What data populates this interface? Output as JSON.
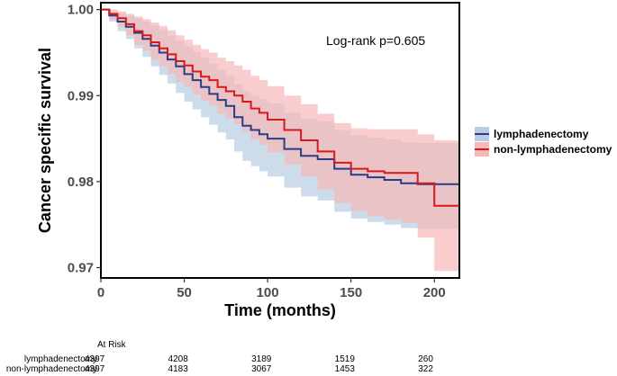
{
  "chart_data": {
    "type": "line",
    "subtype": "kaplan-meier",
    "title": "",
    "xlabel": "Time (months)",
    "ylabel": "Cancer specific survival",
    "xlim": [
      0,
      215
    ],
    "ylim": [
      0.9688,
      1.0008
    ],
    "xticks": [
      0,
      50,
      100,
      150,
      200
    ],
    "xtick_labels": [
      "0",
      "50",
      "100",
      "150",
      "200"
    ],
    "yticks": [
      0.97,
      0.98,
      0.99,
      1.0
    ],
    "ytick_labels": [
      "0.97",
      "0.98",
      "0.99",
      "1.00"
    ],
    "annotation": "Log-rank p=0.605",
    "legend": {
      "placement": "right",
      "entries": [
        {
          "name": "lymphadenectomy",
          "line_color": "#2b3d87",
          "fill_color": "#b8cde3"
        },
        {
          "name": "non-lymphadenectomy",
          "line_color": "#d7191c",
          "fill_color": "#f7b8b8"
        }
      ]
    },
    "series": [
      {
        "name": "lymphadenectomy",
        "color": "#2b3d87",
        "ci_color": "#b8cde3",
        "x": [
          0,
          5,
          10,
          15,
          20,
          25,
          30,
          35,
          40,
          45,
          50,
          55,
          60,
          65,
          70,
          75,
          80,
          85,
          90,
          95,
          100,
          110,
          120,
          130,
          140,
          150,
          160,
          170,
          180,
          190,
          200,
          215
        ],
        "y": [
          1.0,
          0.9993,
          0.9986,
          0.998,
          0.9973,
          0.9966,
          0.9958,
          0.995,
          0.9942,
          0.9934,
          0.9925,
          0.9918,
          0.991,
          0.9902,
          0.9895,
          0.9888,
          0.9875,
          0.9865,
          0.986,
          0.9855,
          0.985,
          0.9838,
          0.983,
          0.9826,
          0.9815,
          0.9808,
          0.9805,
          0.9802,
          0.9798,
          0.9797,
          0.9797,
          0.9797
        ],
        "lower": [
          1.0,
          0.9986,
          0.9975,
          0.9966,
          0.9955,
          0.9945,
          0.9934,
          0.9924,
          0.9914,
          0.9903,
          0.9893,
          0.9884,
          0.9875,
          0.9866,
          0.9857,
          0.9849,
          0.9835,
          0.9824,
          0.9818,
          0.9812,
          0.9806,
          0.9793,
          0.9783,
          0.9778,
          0.9765,
          0.9757,
          0.9753,
          0.975,
          0.9746,
          0.9745,
          0.9745,
          0.9745
        ],
        "upper": [
          1.0,
          0.9999,
          0.9996,
          0.9993,
          0.999,
          0.9986,
          0.9982,
          0.9977,
          0.997,
          0.9964,
          0.9957,
          0.9951,
          0.9944,
          0.9937,
          0.993,
          0.9923,
          0.9913,
          0.9905,
          0.99,
          0.9896,
          0.9891,
          0.988,
          0.9873,
          0.987,
          0.986,
          0.9854,
          0.9851,
          0.9849,
          0.9846,
          0.9845,
          0.9845,
          0.9845
        ]
      },
      {
        "name": "non-lymphadenectomy",
        "color": "#d7191c",
        "ci_color": "#f7b8b8",
        "x": [
          0,
          5,
          10,
          15,
          20,
          25,
          30,
          35,
          40,
          45,
          50,
          55,
          60,
          65,
          70,
          75,
          80,
          85,
          90,
          95,
          100,
          110,
          120,
          130,
          140,
          150,
          160,
          170,
          180,
          190,
          200,
          215
        ],
        "y": [
          1.0,
          0.9995,
          0.999,
          0.9983,
          0.9975,
          0.997,
          0.9962,
          0.9955,
          0.9948,
          0.994,
          0.9935,
          0.9928,
          0.9922,
          0.9918,
          0.991,
          0.9905,
          0.99,
          0.9893,
          0.9885,
          0.988,
          0.9872,
          0.986,
          0.9848,
          0.9835,
          0.9822,
          0.9815,
          0.9812,
          0.981,
          0.981,
          0.9798,
          0.9772,
          0.9772
        ],
        "lower": [
          1.0,
          0.9988,
          0.998,
          0.997,
          0.9959,
          0.9952,
          0.9942,
          0.9934,
          0.9925,
          0.9916,
          0.991,
          0.9901,
          0.9894,
          0.9888,
          0.9879,
          0.9873,
          0.9867,
          0.9858,
          0.9849,
          0.9843,
          0.9834,
          0.982,
          0.9806,
          0.9791,
          0.9775,
          0.9766,
          0.976,
          0.9756,
          0.9752,
          0.9735,
          0.9696,
          0.9696
        ],
        "upper": [
          1.0,
          1.0,
          0.9998,
          0.9995,
          0.9992,
          0.9989,
          0.9985,
          0.9981,
          0.9976,
          0.997,
          0.9965,
          0.9959,
          0.9954,
          0.995,
          0.9944,
          0.994,
          0.9935,
          0.993,
          0.9923,
          0.9918,
          0.9911,
          0.99,
          0.989,
          0.9879,
          0.9868,
          0.9862,
          0.9861,
          0.9861,
          0.9861,
          0.9855,
          0.9848,
          0.9848
        ]
      }
    ],
    "risk_table": {
      "header": "At Risk",
      "times": [
        0,
        50,
        100,
        150,
        200
      ],
      "rows": [
        {
          "label": "lymphadenectomy",
          "counts": [
            "4397",
            "4208",
            "3189",
            "1519",
            "260"
          ]
        },
        {
          "label": "non-lymphadenectomy",
          "counts": [
            "4397",
            "4183",
            "3067",
            "1453",
            "322"
          ]
        }
      ]
    }
  }
}
